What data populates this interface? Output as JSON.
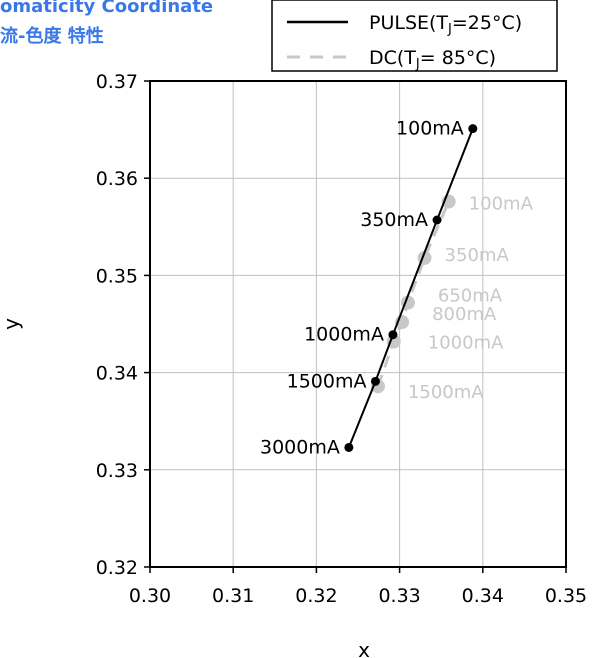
{
  "header": {
    "title_en": "omaticity Coordinate",
    "title_cn": "流-色度 特性"
  },
  "chart_data": {
    "type": "line",
    "xlabel": "x",
    "ylabel": "y",
    "xlim": [
      0.3,
      0.35
    ],
    "ylim": [
      0.32,
      0.37
    ],
    "x_ticks": [
      "0.30",
      "0.31",
      "0.32",
      "0.33",
      "0.34",
      "0.35"
    ],
    "y_ticks": [
      "0.32",
      "0.33",
      "0.34",
      "0.35",
      "0.36",
      "0.37"
    ],
    "grid": true,
    "legend_position": "top-right",
    "series": [
      {
        "name": "PULSE(TJ=25°C)",
        "legend_main": "PULSE(T",
        "legend_sub": "J",
        "legend_tail": "=25°C)",
        "color": "#000000",
        "style": "solid",
        "points": [
          {
            "x": 0.3239,
            "y": 0.3323,
            "label": "3000mA"
          },
          {
            "x": 0.3271,
            "y": 0.3391,
            "label": "1500mA"
          },
          {
            "x": 0.3292,
            "y": 0.3439,
            "label": "1000mA"
          },
          {
            "x": 0.3345,
            "y": 0.3557,
            "label": "350mA"
          },
          {
            "x": 0.3388,
            "y": 0.3651,
            "label": "100mA"
          }
        ]
      },
      {
        "name": "DC(TJ= 85°C)",
        "legend_main": "DC(T",
        "legend_sub": "J",
        "legend_tail": "= 85°C)",
        "color": "#c8c8c8",
        "style": "dashed",
        "points": [
          {
            "x": 0.3274,
            "y": 0.3386,
            "label": "1500mA"
          },
          {
            "x": 0.3293,
            "y": 0.3432,
            "label": "1000mA"
          },
          {
            "x": 0.3303,
            "y": 0.3452,
            "label": "800mA"
          },
          {
            "x": 0.331,
            "y": 0.3472,
            "label": "650mA"
          },
          {
            "x": 0.333,
            "y": 0.3518,
            "label": "350mA"
          },
          {
            "x": 0.3359,
            "y": 0.3576,
            "label": "100mA"
          }
        ]
      }
    ]
  }
}
